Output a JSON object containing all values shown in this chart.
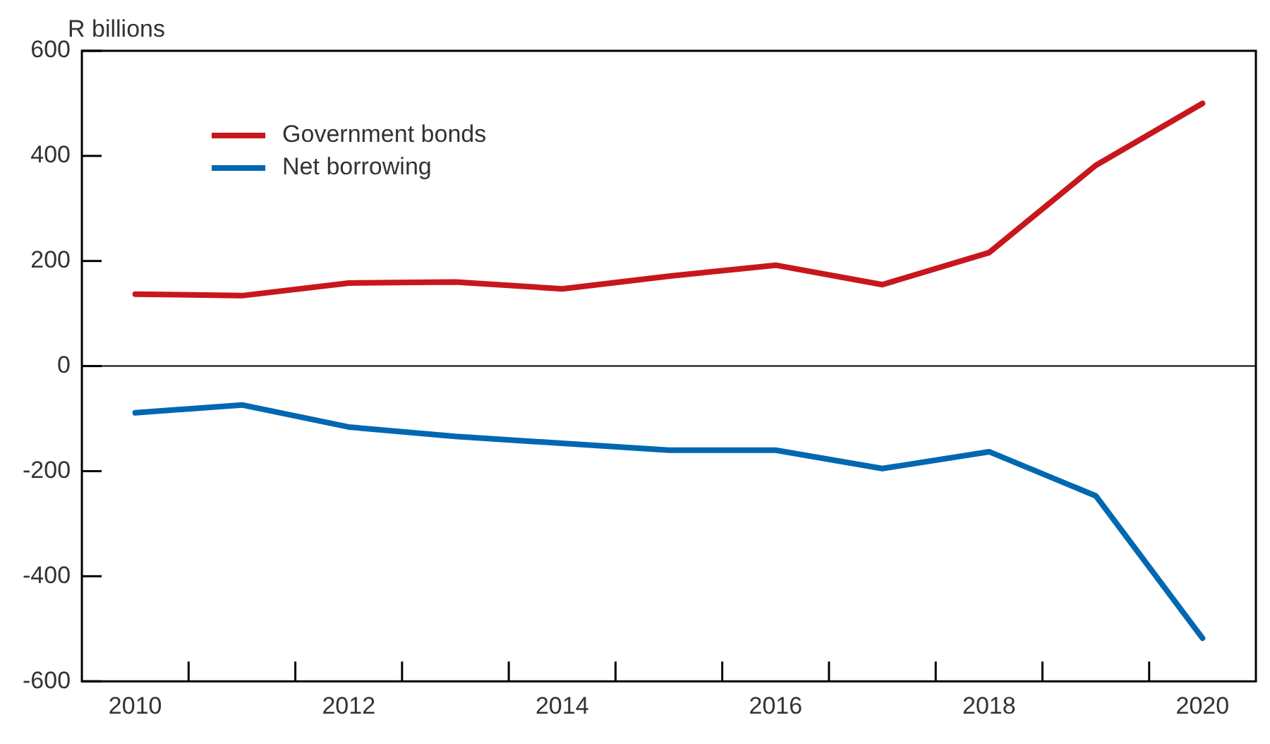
{
  "chart_data": {
    "type": "line",
    "ylabel": "R billions",
    "categories": [
      "2010",
      null,
      "2012",
      null,
      "2014",
      null,
      "2016",
      null,
      "2018",
      null,
      "2020"
    ],
    "series": [
      {
        "name": "Government bonds",
        "color": "#c8161d",
        "values": [
          137,
          134,
          158,
          160,
          147,
          171,
          192,
          155,
          216,
          382,
          500
        ]
      },
      {
        "name": "Net borrowing",
        "color": "#0067b1",
        "values": [
          -89,
          -74,
          -116,
          -134,
          -147,
          -160,
          -160,
          -195,
          -163,
          -247,
          -518
        ]
      }
    ],
    "ylim": [
      -600,
      600
    ],
    "yticks": [
      -600,
      -400,
      -200,
      0,
      200,
      400,
      600
    ],
    "ref_lines": [
      {
        "axis": "y",
        "value": 0,
        "color": "#000000"
      }
    ],
    "legend": "top left",
    "grid": false,
    "marker": "none",
    "line_style": "solid"
  }
}
